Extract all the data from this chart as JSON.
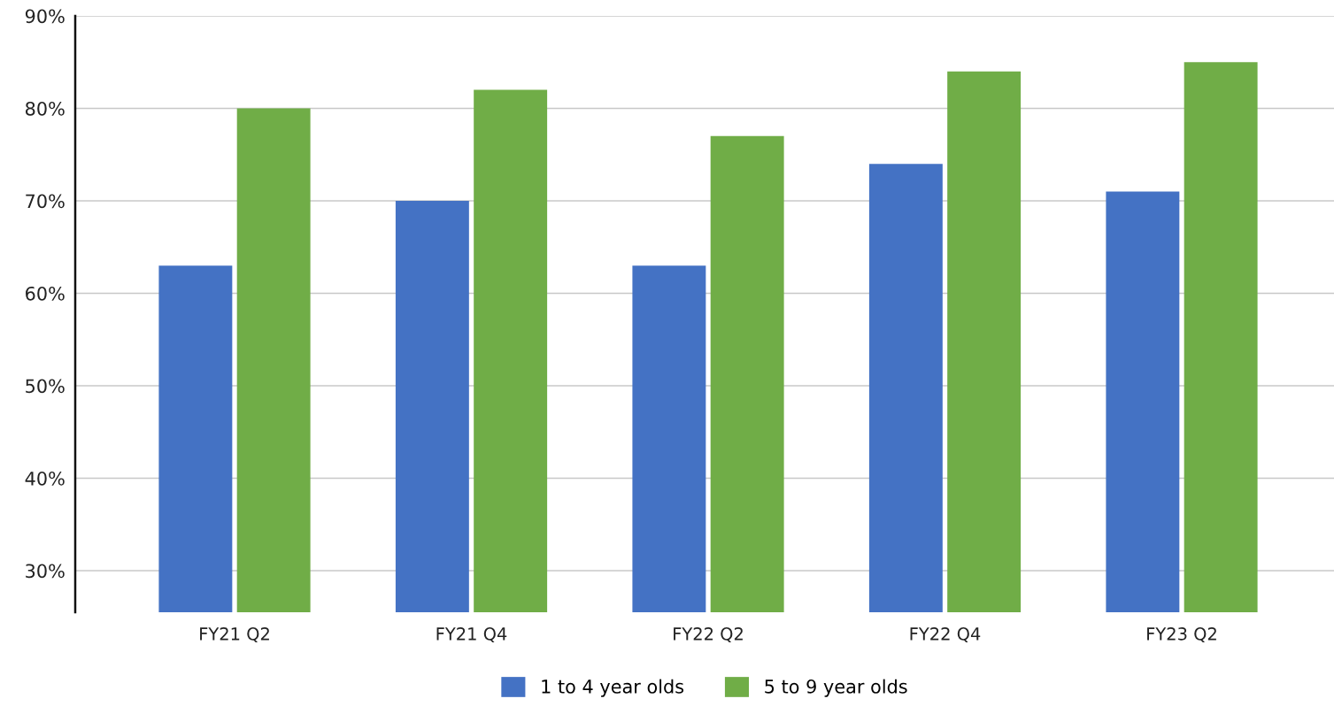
{
  "chart_data": {
    "type": "bar",
    "categories": [
      "FY21 Q2",
      "FY21 Q4",
      "FY22 Q2",
      "FY22 Q4",
      "FY23 Q2"
    ],
    "series": [
      {
        "name": "1 to 4 year olds",
        "color": "#4472c4",
        "values": [
          63,
          70,
          63,
          74,
          71
        ]
      },
      {
        "name": "5 to 9 year olds",
        "color": "#70ad47",
        "values": [
          80,
          82,
          77,
          84,
          85
        ]
      }
    ],
    "ylim": [
      25.5,
      90
    ],
    "yticks": [
      {
        "value": 30,
        "label": "30%"
      },
      {
        "value": 40,
        "label": "40%"
      },
      {
        "value": 50,
        "label": "50%"
      },
      {
        "value": 60,
        "label": "60%"
      },
      {
        "value": 70,
        "label": "70%"
      },
      {
        "value": 80,
        "label": "80%"
      },
      {
        "value": 90,
        "label": "90%"
      }
    ],
    "grid": "y",
    "legend": "bottom"
  }
}
